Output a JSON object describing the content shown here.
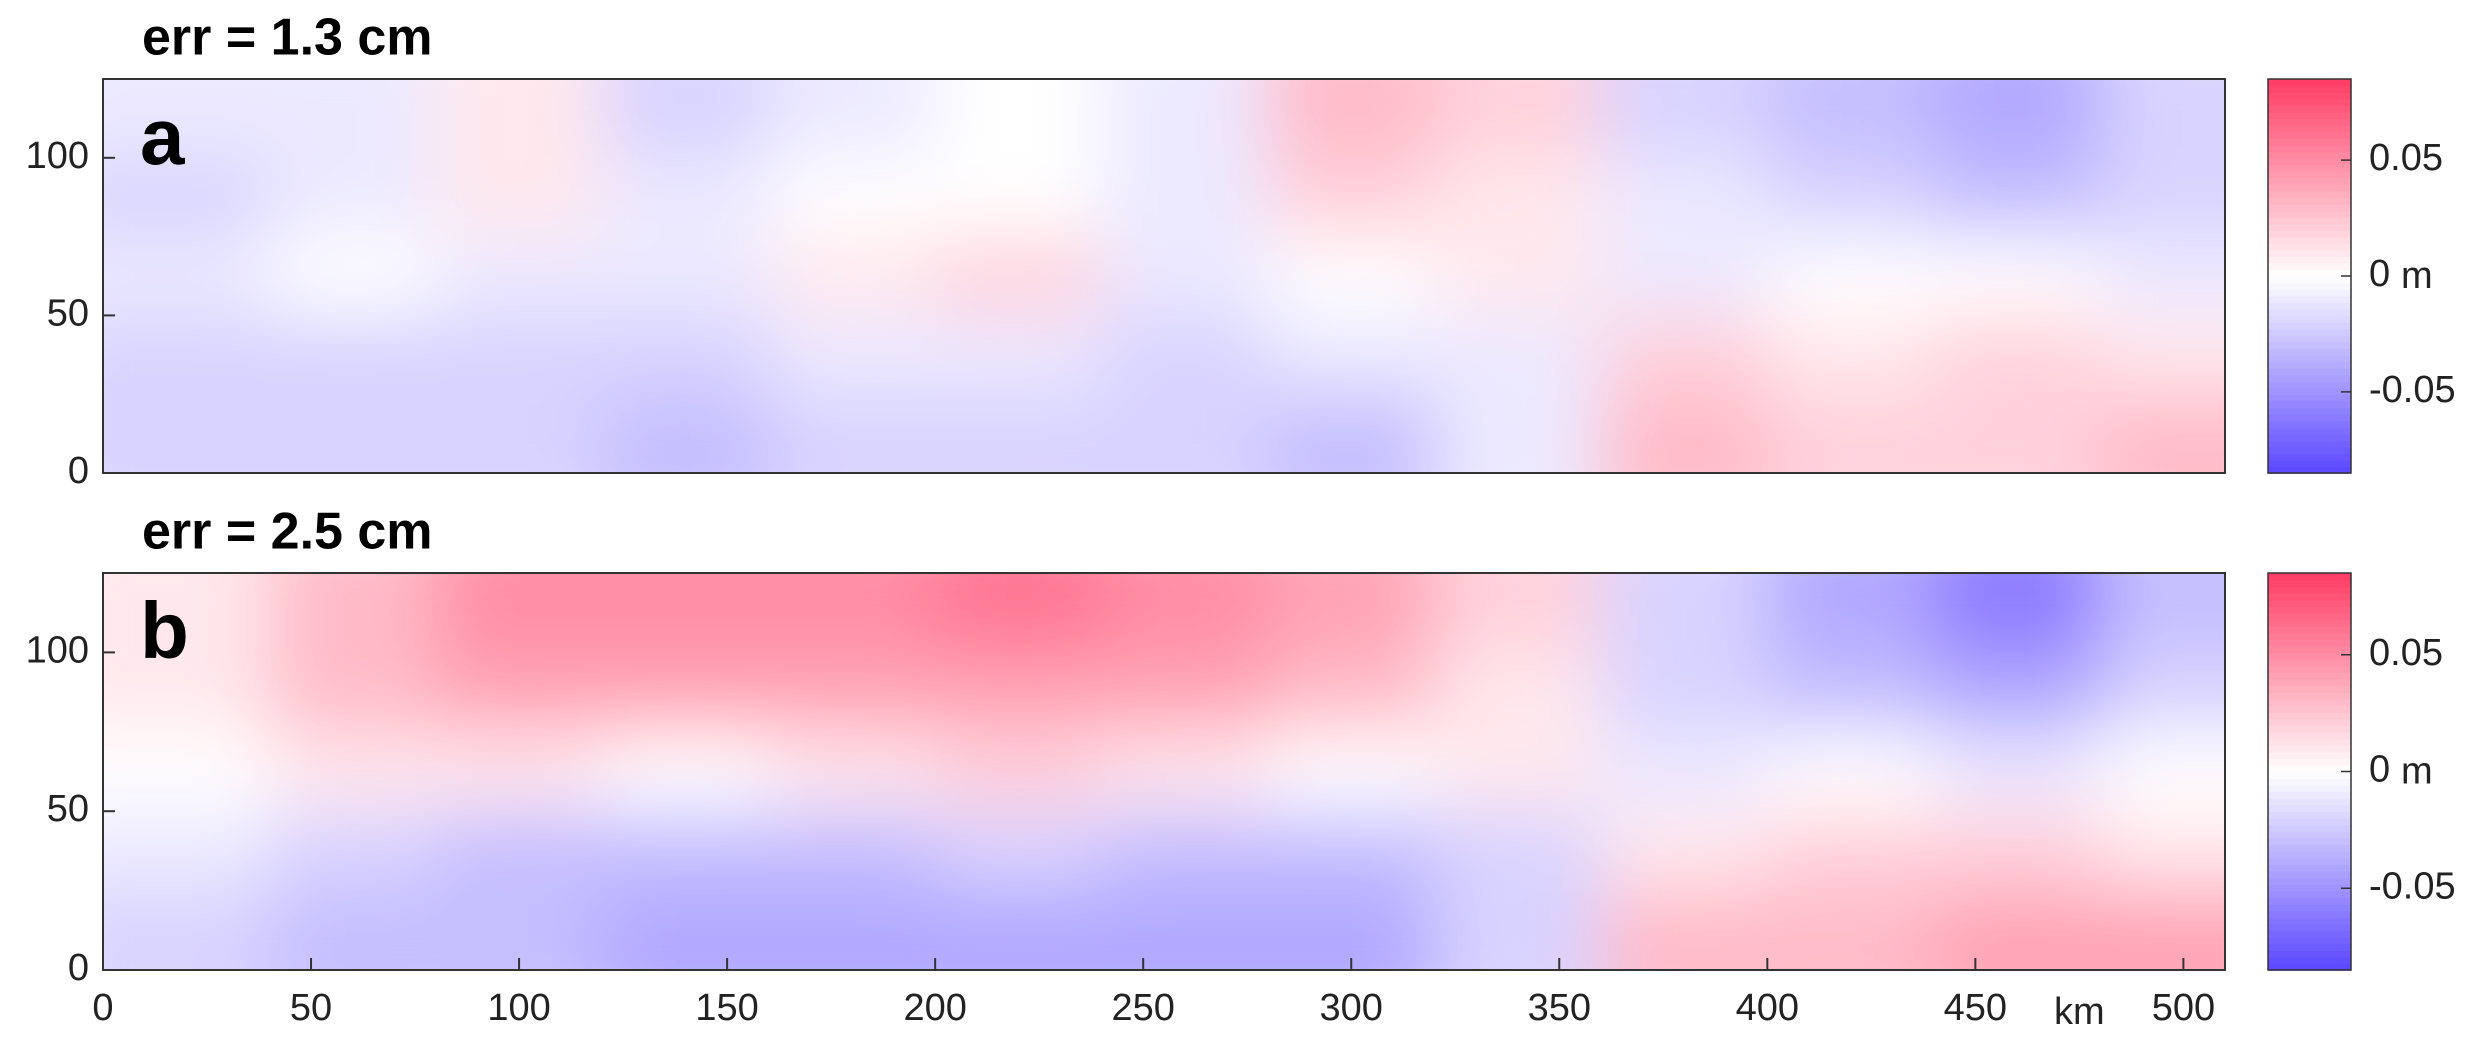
{
  "chart_data": [
    {
      "type": "heatmap",
      "title": "err = 1.3 cm",
      "panel_label": "a",
      "x": [
        20,
        60,
        100,
        140,
        180,
        220,
        260,
        300,
        340,
        380,
        420,
        460,
        500
      ],
      "y": [
        112.5,
        87.5,
        62.5,
        37.5,
        12.5
      ],
      "z": [
        [
          -0.01,
          -0.01,
          0.01,
          -0.02,
          -0.01,
          0.0,
          -0.01,
          0.03,
          0.02,
          -0.02,
          -0.03,
          -0.04,
          -0.02
        ],
        [
          -0.02,
          -0.01,
          0.01,
          -0.01,
          0.0,
          0.0,
          -0.01,
          0.02,
          0.01,
          -0.01,
          -0.02,
          -0.03,
          -0.02
        ],
        [
          -0.01,
          0.0,
          -0.01,
          -0.01,
          0.01,
          0.02,
          -0.01,
          0.0,
          0.01,
          -0.01,
          0.0,
          0.0,
          -0.01
        ],
        [
          -0.02,
          -0.02,
          -0.02,
          -0.02,
          -0.01,
          -0.01,
          -0.02,
          -0.01,
          -0.01,
          0.02,
          0.01,
          0.02,
          0.01
        ],
        [
          -0.02,
          -0.02,
          -0.02,
          -0.03,
          -0.02,
          -0.02,
          -0.02,
          -0.03,
          -0.01,
          0.03,
          0.02,
          0.02,
          0.03
        ]
      ],
      "xlim": [
        0,
        510
      ],
      "ylim": [
        0,
        125
      ],
      "yticks": [
        0,
        50,
        100
      ],
      "colormap": [
        "#5a46ff",
        "#ffffff",
        "#ff3c64"
      ],
      "colorbar": {
        "lim": [
          -0.085,
          0.085
        ],
        "ticks": [
          -0.05,
          0,
          0.05
        ],
        "label": "m"
      }
    },
    {
      "type": "heatmap",
      "title": "err = 2.5 cm",
      "panel_label": "b",
      "x": [
        20,
        60,
        100,
        140,
        180,
        220,
        260,
        300,
        340,
        380,
        420,
        460,
        500
      ],
      "y": [
        112.5,
        87.5,
        62.5,
        37.5,
        12.5
      ],
      "z": [
        [
          0.01,
          0.03,
          0.05,
          0.05,
          0.05,
          0.06,
          0.05,
          0.04,
          0.02,
          -0.02,
          -0.04,
          -0.06,
          -0.03
        ],
        [
          0.01,
          0.03,
          0.04,
          0.04,
          0.04,
          0.04,
          0.04,
          0.03,
          0.01,
          -0.02,
          -0.03,
          -0.04,
          -0.02
        ],
        [
          0.0,
          0.01,
          0.01,
          0.0,
          0.01,
          0.02,
          0.01,
          0.0,
          0.01,
          -0.01,
          0.0,
          -0.01,
          0.0
        ],
        [
          -0.01,
          -0.02,
          -0.03,
          -0.03,
          -0.03,
          -0.02,
          -0.03,
          -0.03,
          -0.02,
          0.01,
          0.02,
          0.02,
          0.01
        ],
        [
          -0.02,
          -0.03,
          -0.03,
          -0.04,
          -0.04,
          -0.04,
          -0.04,
          -0.04,
          -0.02,
          0.03,
          0.03,
          0.04,
          0.04
        ]
      ],
      "xlim": [
        0,
        510
      ],
      "xticks": [
        0,
        50,
        100,
        150,
        200,
        250,
        300,
        350,
        400,
        450,
        500
      ],
      "xlabel": "km",
      "ylim": [
        0,
        125
      ],
      "yticks": [
        0,
        50,
        100
      ],
      "colormap": [
        "#5a46ff",
        "#ffffff",
        "#ff3c64"
      ],
      "colorbar": {
        "lim": [
          -0.085,
          0.085
        ],
        "ticks": [
          -0.05,
          0,
          0.05
        ],
        "label": "m"
      }
    }
  ]
}
